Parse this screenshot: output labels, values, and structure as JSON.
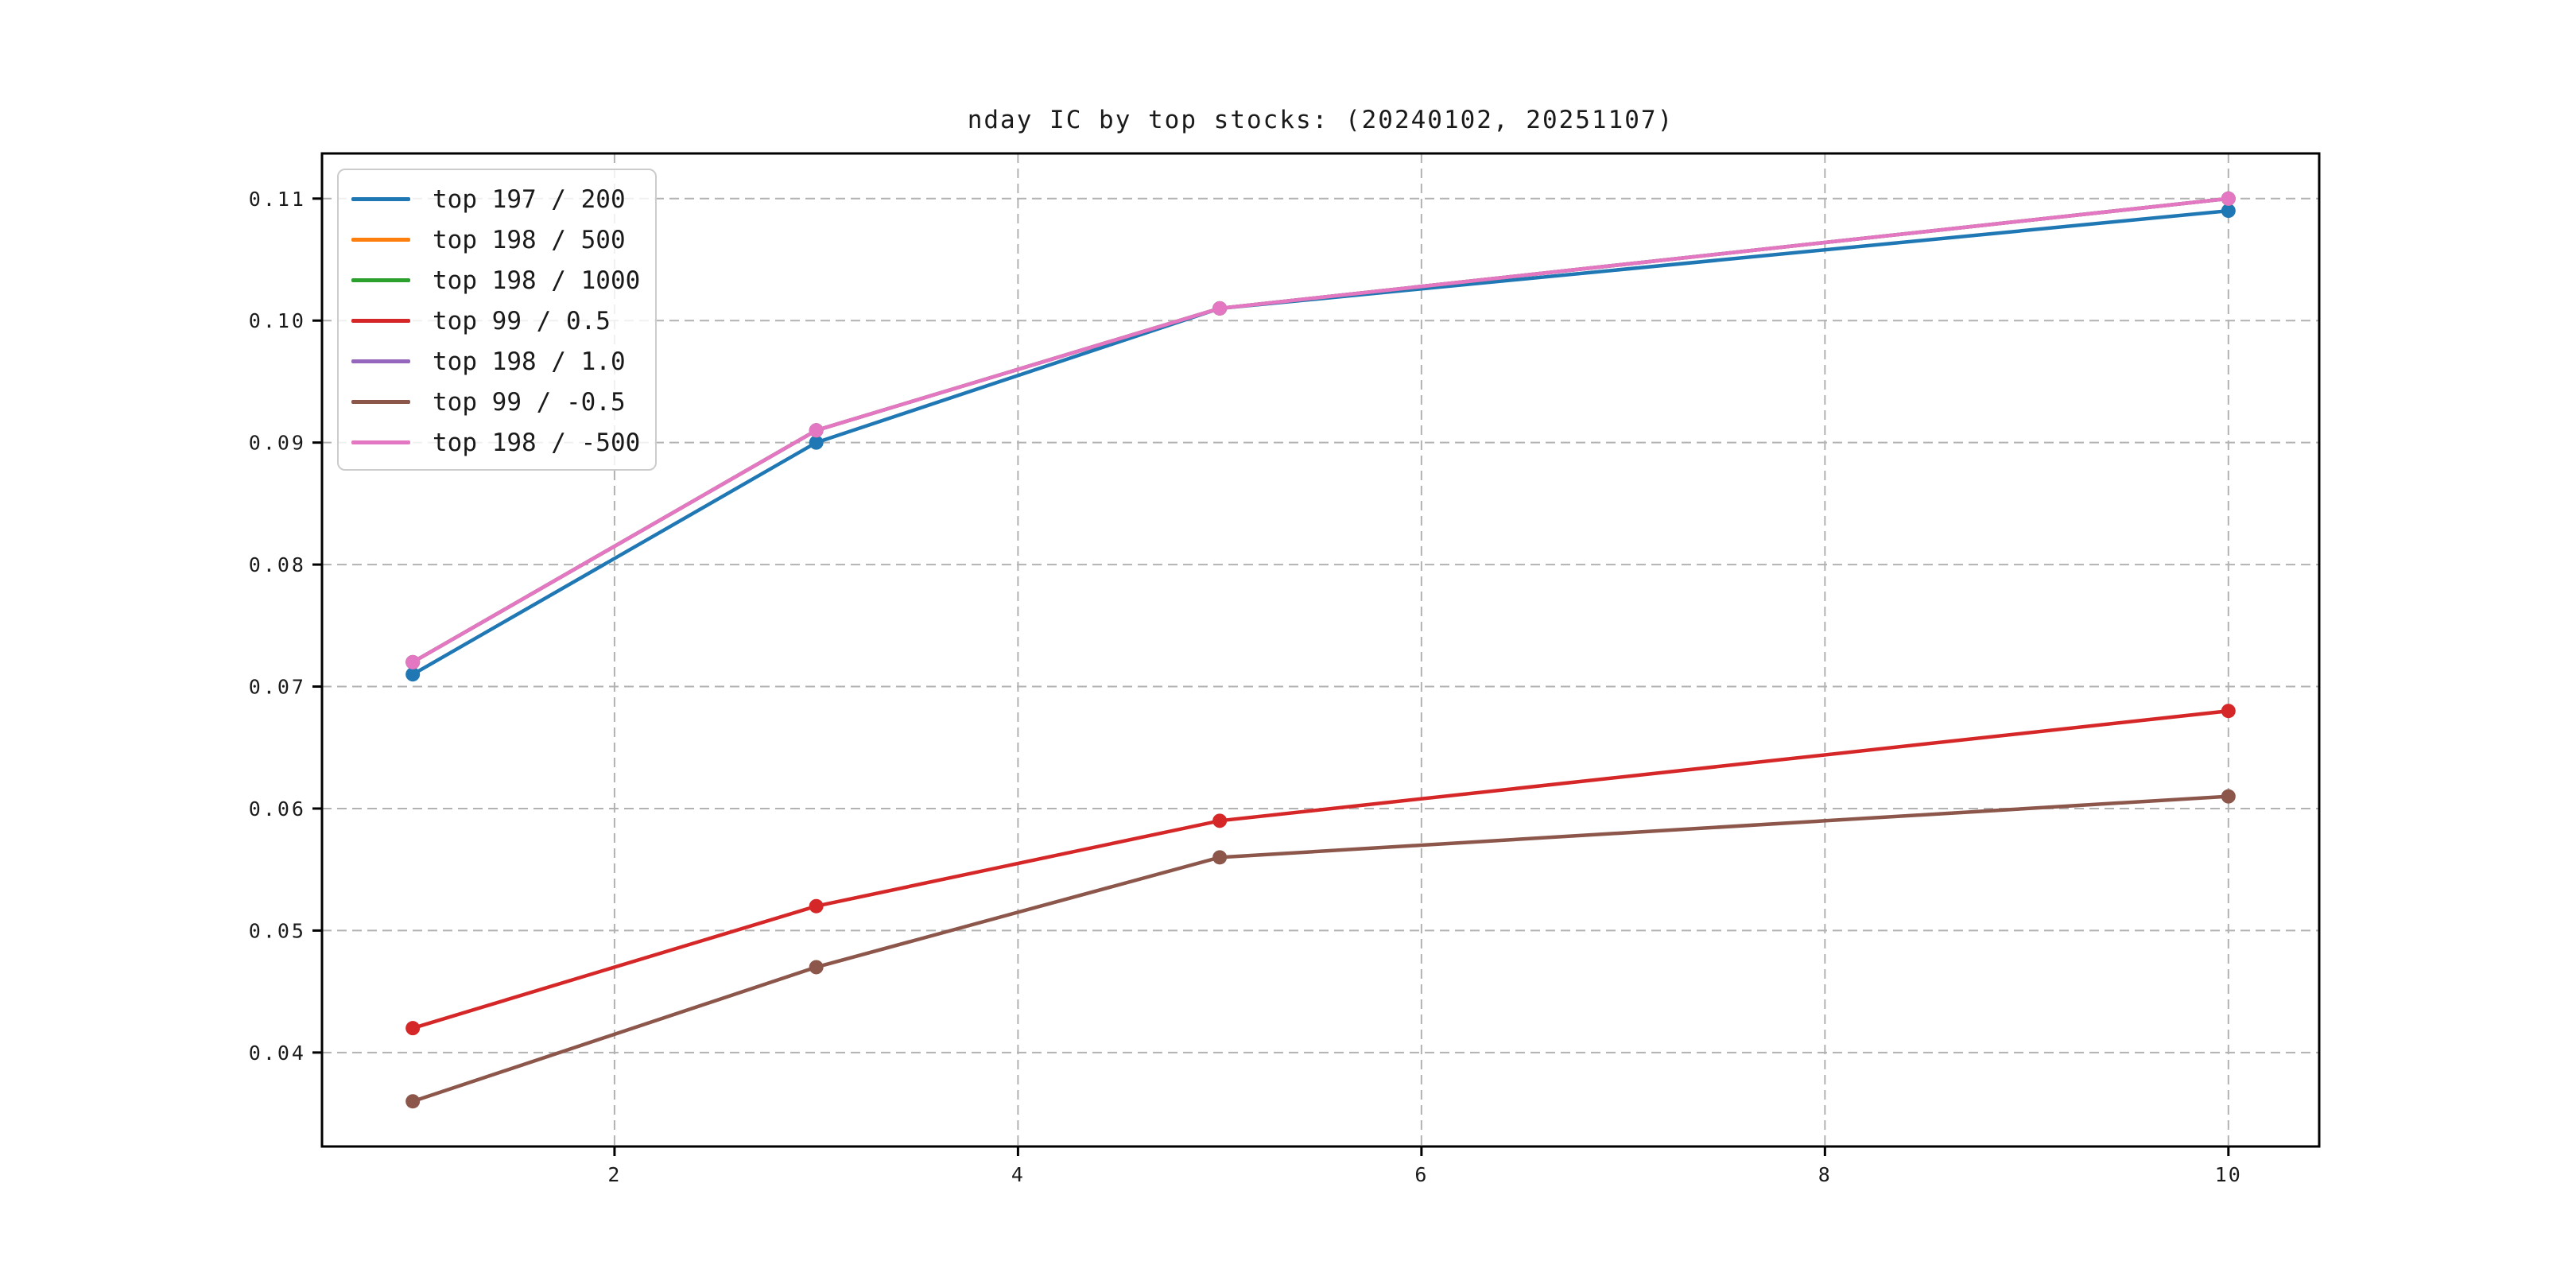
{
  "chart_data": {
    "type": "line",
    "title": "nday IC by top stocks: (20240102, 20251107)",
    "xlabel": "",
    "ylabel": "",
    "x": [
      1,
      3,
      5,
      10
    ],
    "series": [
      {
        "label": "top 197 / 200",
        "color": "#1f77b4",
        "values": [
          0.071,
          0.09,
          0.101,
          0.109
        ]
      },
      {
        "label": "top 198 / 500",
        "color": "#ff7f0e",
        "values": [
          0.072,
          0.091,
          0.101,
          0.11
        ]
      },
      {
        "label": "top 198 / 1000",
        "color": "#2ca02c",
        "values": [
          0.072,
          0.091,
          0.101,
          0.11
        ]
      },
      {
        "label": "top 99 / 0.5",
        "color": "#d62728",
        "values": [
          0.042,
          0.052,
          0.059,
          0.068
        ]
      },
      {
        "label": "top 198 / 1.0",
        "color": "#9467bd",
        "values": [
          0.072,
          0.091,
          0.101,
          0.11
        ]
      },
      {
        "label": "top 99 / -0.5",
        "color": "#8c564b",
        "values": [
          0.036,
          0.047,
          0.056,
          0.061
        ]
      },
      {
        "label": "top 198 / -500",
        "color": "#e377c2",
        "values": [
          0.072,
          0.091,
          0.101,
          0.11
        ]
      }
    ],
    "xlim": [
      0.55,
      10.45
    ],
    "ylim": [
      0.0323,
      0.1137
    ],
    "x_ticks": [
      {
        "value": 2,
        "label": "2"
      },
      {
        "value": 4,
        "label": "4"
      },
      {
        "value": 6,
        "label": "6"
      },
      {
        "value": 8,
        "label": "8"
      },
      {
        "value": 10,
        "label": "10"
      }
    ],
    "y_ticks": [
      {
        "value": 0.04,
        "label": "0.04"
      },
      {
        "value": 0.05,
        "label": "0.05"
      },
      {
        "value": 0.06,
        "label": "0.06"
      },
      {
        "value": 0.07,
        "label": "0.07"
      },
      {
        "value": 0.08,
        "label": "0.08"
      },
      {
        "value": 0.09,
        "label": "0.09"
      },
      {
        "value": 0.1,
        "label": "0.10"
      },
      {
        "value": 0.11,
        "label": "0.11"
      }
    ],
    "grid": true,
    "grid_style": "dashed",
    "legend_position": "upper left",
    "marker": "o"
  },
  "colors": {
    "grid": "#b2b2b2",
    "axis": "#000000",
    "legend_border": "#cccccc",
    "text": "#1a1a1a",
    "background": "#ffffff"
  }
}
